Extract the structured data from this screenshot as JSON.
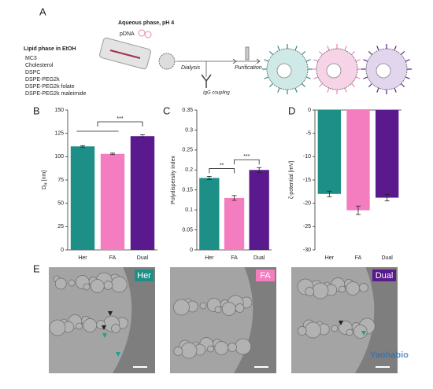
{
  "panel_labels": [
    "A",
    "B",
    "C",
    "D",
    "E"
  ],
  "scheme": {
    "aqueous_phase": "Aqueous phase, pH 4",
    "pdna": "pDNA",
    "lipid_phase": "Lipid phase in EtOH",
    "lipids": [
      "MC3",
      "Cholesterol",
      "DSPC",
      "DSPE-PEG2k",
      "DSPE-PEG2k folate",
      "DSPE-PEG2k maleimide"
    ],
    "steps": [
      "Dialysis",
      "IgG coupling",
      "Purification"
    ]
  },
  "chart_data": [
    {
      "type": "bar",
      "ylabel": [
        "D",
        "H",
        " [nm]"
      ],
      "categories": [
        "Her",
        "FA",
        "Dual"
      ],
      "values": [
        111,
        103,
        122
      ],
      "errors": [
        0.8,
        0.8,
        1.5
      ],
      "colors": [
        "#1e8f87",
        "#f47dbf",
        "#5a1a8e"
      ],
      "ylim": [
        0,
        150
      ],
      "yticks": [
        0,
        25,
        50,
        75,
        100,
        125,
        150
      ],
      "significance": [
        "***"
      ]
    },
    {
      "type": "bar",
      "ylabel": "Polydispersity index",
      "categories": [
        "Her",
        "FA",
        "Dual"
      ],
      "values": [
        0.18,
        0.13,
        0.2
      ],
      "errors": [
        0.004,
        0.006,
        0.006
      ],
      "colors": [
        "#1e8f87",
        "#f47dbf",
        "#5a1a8e"
      ],
      "ylim": [
        0,
        0.35
      ],
      "yticks": [
        0,
        0.05,
        0.1,
        0.15,
        0.2,
        0.25,
        0.3,
        0.35
      ],
      "significance": [
        "**",
        "***"
      ]
    },
    {
      "type": "bar",
      "ylabel": "ζ-potential [mV]",
      "categories": [
        "Her",
        "FA",
        "Dual"
      ],
      "values": [
        -18,
        -21.5,
        -18.8
      ],
      "errors": [
        0.6,
        0.9,
        0.7
      ],
      "colors": [
        "#1e8f87",
        "#f47dbf",
        "#5a1a8e"
      ],
      "ylim": [
        -30,
        0
      ],
      "yticks": [
        0,
        -5,
        -10,
        -15,
        -20,
        -25,
        -30
      ],
      "significance": []
    }
  ],
  "micrographs": {
    "labels": [
      "Her",
      "FA",
      "Dual"
    ]
  },
  "watermark": "Yaohabio"
}
